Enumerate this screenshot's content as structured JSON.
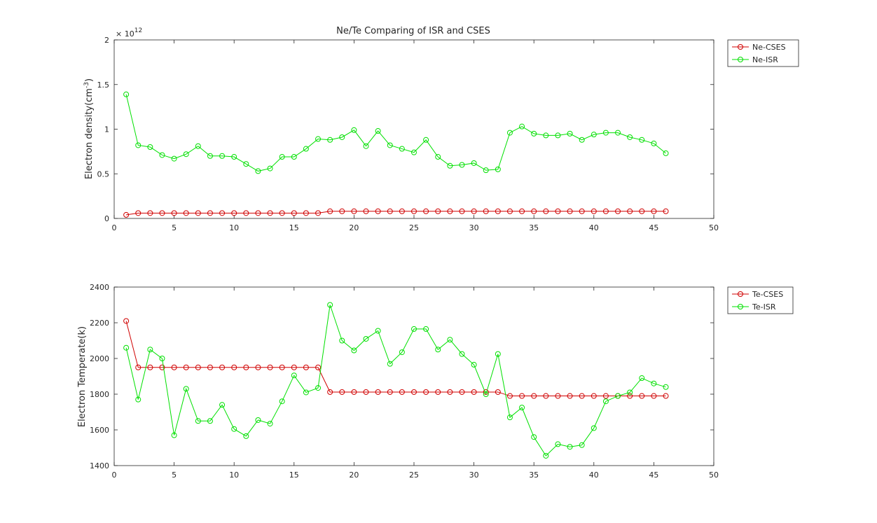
{
  "chart_data": [
    {
      "type": "line",
      "title": "Ne/Te Comparing of ISR and CSES",
      "xlabel": "",
      "ylabel": "Electron density(cm",
      "ylabel_sup": "-3",
      "ylabel_close": ")",
      "exponent_prefix": "× 10",
      "exponent_power": "12",
      "xlim": [
        0,
        50
      ],
      "ylim": [
        0,
        2
      ],
      "xticks": [
        0,
        5,
        10,
        15,
        20,
        25,
        30,
        35,
        40,
        45,
        50
      ],
      "yticks": [
        0,
        0.5,
        1,
        1.5,
        2
      ],
      "grid": false,
      "legend_position": "outside-top-right",
      "x": [
        1,
        2,
        3,
        4,
        5,
        6,
        7,
        8,
        9,
        10,
        11,
        12,
        13,
        14,
        15,
        16,
        17,
        18,
        19,
        20,
        21,
        22,
        23,
        24,
        25,
        26,
        27,
        28,
        29,
        30,
        31,
        32,
        33,
        34,
        35,
        36,
        37,
        38,
        39,
        40,
        41,
        42,
        43,
        44,
        45,
        46
      ],
      "series": [
        {
          "name": "Ne-CSES",
          "color": "#d00000",
          "marker": "circle",
          "values": [
            0.04,
            0.06,
            0.06,
            0.06,
            0.06,
            0.06,
            0.06,
            0.06,
            0.06,
            0.06,
            0.06,
            0.06,
            0.06,
            0.06,
            0.06,
            0.06,
            0.06,
            0.08,
            0.08,
            0.08,
            0.08,
            0.08,
            0.08,
            0.08,
            0.08,
            0.08,
            0.08,
            0.08,
            0.08,
            0.08,
            0.08,
            0.08,
            0.08,
            0.08,
            0.08,
            0.08,
            0.08,
            0.08,
            0.08,
            0.08,
            0.08,
            0.08,
            0.08,
            0.08,
            0.08,
            0.08
          ]
        },
        {
          "name": "Ne-ISR",
          "color": "#00e000",
          "marker": "circle",
          "values": [
            1.39,
            0.82,
            0.8,
            0.71,
            0.67,
            0.72,
            0.81,
            0.7,
            0.7,
            0.69,
            0.61,
            0.53,
            0.56,
            0.69,
            0.69,
            0.78,
            0.89,
            0.88,
            0.91,
            0.99,
            0.81,
            0.98,
            0.82,
            0.78,
            0.74,
            0.88,
            0.69,
            0.59,
            0.6,
            0.62,
            0.54,
            0.55,
            0.96,
            1.03,
            0.95,
            0.93,
            0.93,
            0.95,
            0.88,
            0.94,
            0.96,
            0.96,
            0.91,
            0.88,
            0.84,
            0.73
          ]
        }
      ]
    },
    {
      "type": "line",
      "title": "",
      "xlabel": "",
      "ylabel": "Electron Temperate(k)",
      "xlim": [
        0,
        50
      ],
      "ylim": [
        1400,
        2400
      ],
      "xticks": [
        0,
        5,
        10,
        15,
        20,
        25,
        30,
        35,
        40,
        45,
        50
      ],
      "yticks": [
        1400,
        1600,
        1800,
        2000,
        2200,
        2400
      ],
      "grid": false,
      "legend_position": "outside-top-right",
      "x": [
        1,
        2,
        3,
        4,
        5,
        6,
        7,
        8,
        9,
        10,
        11,
        12,
        13,
        14,
        15,
        16,
        17,
        18,
        19,
        20,
        21,
        22,
        23,
        24,
        25,
        26,
        27,
        28,
        29,
        30,
        31,
        32,
        33,
        34,
        35,
        36,
        37,
        38,
        39,
        40,
        41,
        42,
        43,
        44,
        45,
        46
      ],
      "series": [
        {
          "name": "Te-CSES",
          "color": "#d00000",
          "marker": "circle",
          "values": [
            2210,
            1950,
            1950,
            1950,
            1950,
            1950,
            1950,
            1950,
            1950,
            1950,
            1950,
            1950,
            1950,
            1950,
            1950,
            1950,
            1950,
            1812,
            1812,
            1812,
            1812,
            1812,
            1812,
            1812,
            1812,
            1812,
            1812,
            1812,
            1812,
            1812,
            1812,
            1812,
            1790,
            1790,
            1790,
            1790,
            1790,
            1790,
            1790,
            1790,
            1790,
            1790,
            1790,
            1790,
            1790,
            1790
          ]
        },
        {
          "name": "Te-ISR",
          "color": "#00e000",
          "marker": "circle",
          "values": [
            2060,
            1770,
            2050,
            2000,
            1570,
            1830,
            1650,
            1650,
            1740,
            1605,
            1565,
            1655,
            1635,
            1760,
            1905,
            1810,
            1835,
            2300,
            2100,
            2045,
            2110,
            2155,
            1970,
            2035,
            2165,
            2165,
            2050,
            2105,
            2025,
            1965,
            1800,
            2025,
            1670,
            1725,
            1560,
            1455,
            1520,
            1505,
            1515,
            1610,
            1760,
            1790,
            1810,
            1890,
            1860,
            1840
          ]
        }
      ]
    }
  ]
}
